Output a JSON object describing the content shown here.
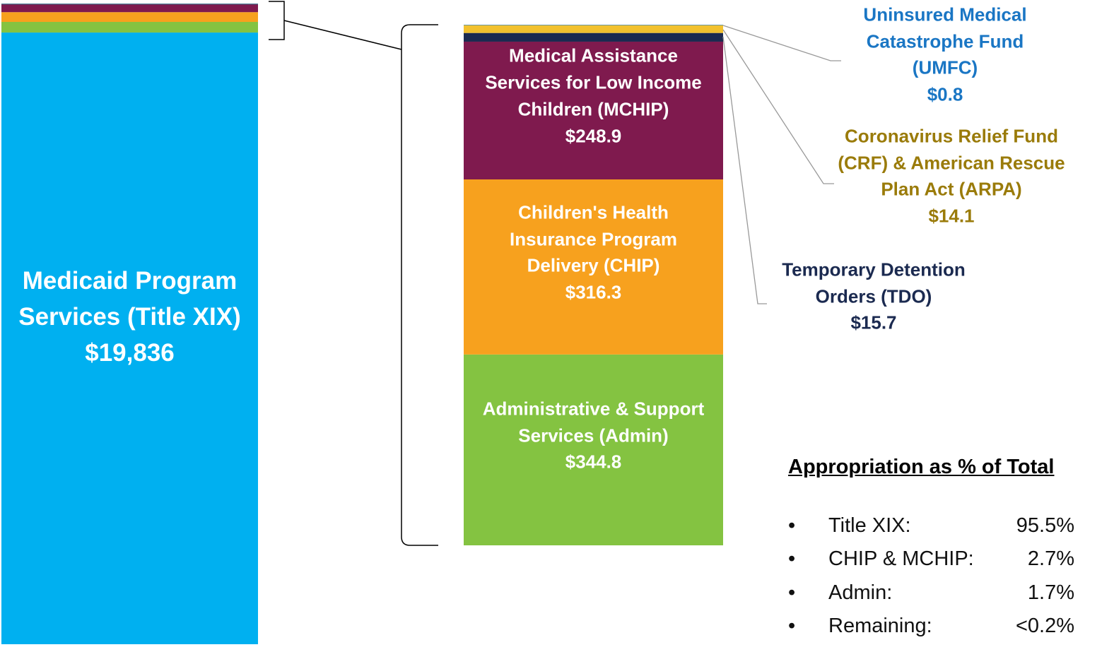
{
  "chart_data": {
    "type": "bar",
    "stacked": true,
    "categories": [
      null,
      null
    ],
    "series": [
      {
        "name": "Medicaid Program Services (Title XIX)",
        "color": "#00b0f0",
        "label_color": "#ffffff",
        "values": [
          19836,
          null
        ],
        "value_labels": [
          "$19,836",
          null
        ]
      },
      {
        "name": "Administrative & Support Services (Admin)",
        "color": "#84c341",
        "label_color": "#ffffff",
        "values": [
          344.8,
          344.8
        ],
        "value_labels": [
          "$344.8",
          "$344.8"
        ]
      },
      {
        "name": "Children's Health Insurance Program Delivery (CHIP)",
        "color": "#f7a11e",
        "label_color": "#ffffff",
        "values": [
          316.3,
          316.3
        ],
        "value_labels": [
          "$316.3",
          "$316.3"
        ]
      },
      {
        "name": "Medical Assistance Services for Low Income Children (MCHIP)",
        "color": "#7f1a4e",
        "label_color": "#ffffff",
        "values": [
          248.9,
          248.9
        ],
        "value_labels": [
          "$248.9",
          "$248.9"
        ]
      },
      {
        "name": "Temporary Detention Orders (TDO)",
        "color": "#1b2a50",
        "label_color": "#1b2a50",
        "values": [
          15.7,
          15.7
        ],
        "value_labels": [
          "$15.7",
          "$15.7"
        ]
      },
      {
        "name": "Coronavirus Relief Fund (CRF) & American Rescue Plan Act (ARPA)",
        "color": "#f2c12e",
        "label_color": "#9a7b0a",
        "values": [
          14.1,
          14.1
        ],
        "value_labels": [
          "$14.1",
          "$14.1"
        ]
      },
      {
        "name": "Uninsured Medical Catastrophe Fund (UMFC)",
        "color": "#1a76c4",
        "label_color": "#1a76c4",
        "values": [
          0.8,
          0.8
        ],
        "value_labels": [
          "$0.8",
          "$0.8"
        ]
      }
    ]
  },
  "panel": {
    "title": "Appropriation as % of Total",
    "items": [
      {
        "label": "Title XIX:",
        "value": "95.5%"
      },
      {
        "label": "CHIP & MCHIP:",
        "value": "2.7%"
      },
      {
        "label": "Admin:",
        "value": "1.7%"
      },
      {
        "label": "Remaining:",
        "value": "<0.2%"
      }
    ]
  }
}
